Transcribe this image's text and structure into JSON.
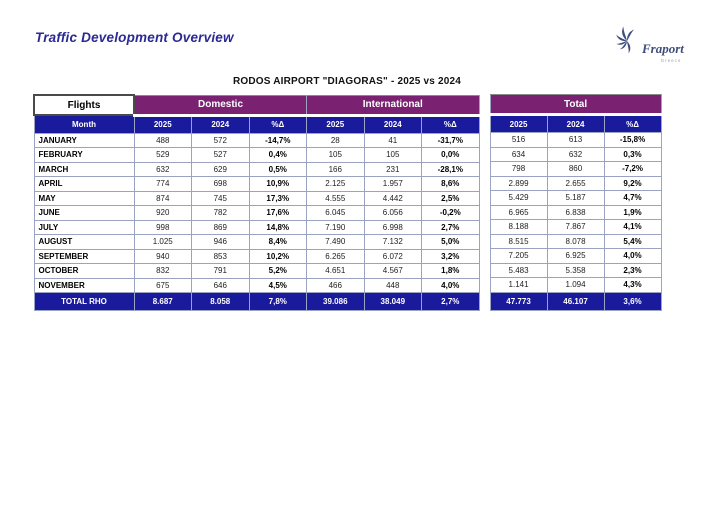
{
  "page": {
    "title": "Traffic Development Overview",
    "logo": {
      "brand": "Fraport",
      "sub": "Greece"
    }
  },
  "colors": {
    "header_purple": "#7B2172",
    "header_blue": "#1A1A9C",
    "title_navy": "#2B2A94",
    "logo_blue": "#3E4E7A"
  },
  "table": {
    "caption": "RODOS AIRPORT \"DIAGORAS\" - 2025 vs 2024",
    "corner_label": "Flights",
    "groups": {
      "domestic": "Domestic",
      "international": "International",
      "total": "Total"
    },
    "col_headers": {
      "month": "Month",
      "y2025": "2025",
      "y2024": "2024",
      "delta": "%Δ"
    },
    "rows": [
      {
        "month": "JANUARY",
        "d2025": "488",
        "d2024": "572",
        "d_pct": "-14,7%",
        "i2025": "28",
        "i2024": "41",
        "i_pct": "-31,7%",
        "t2025": "516",
        "t2024": "613",
        "t_pct": "-15,8%"
      },
      {
        "month": "FEBRUARY",
        "d2025": "529",
        "d2024": "527",
        "d_pct": "0,4%",
        "i2025": "105",
        "i2024": "105",
        "i_pct": "0,0%",
        "t2025": "634",
        "t2024": "632",
        "t_pct": "0,3%"
      },
      {
        "month": "MARCH",
        "d2025": "632",
        "d2024": "629",
        "d_pct": "0,5%",
        "i2025": "166",
        "i2024": "231",
        "i_pct": "-28,1%",
        "t2025": "798",
        "t2024": "860",
        "t_pct": "-7,2%"
      },
      {
        "month": "APRIL",
        "d2025": "774",
        "d2024": "698",
        "d_pct": "10,9%",
        "i2025": "2.125",
        "i2024": "1.957",
        "i_pct": "8,6%",
        "t2025": "2.899",
        "t2024": "2.655",
        "t_pct": "9,2%"
      },
      {
        "month": "MAY",
        "d2025": "874",
        "d2024": "745",
        "d_pct": "17,3%",
        "i2025": "4.555",
        "i2024": "4.442",
        "i_pct": "2,5%",
        "t2025": "5.429",
        "t2024": "5.187",
        "t_pct": "4,7%"
      },
      {
        "month": "JUNE",
        "d2025": "920",
        "d2024": "782",
        "d_pct": "17,6%",
        "i2025": "6.045",
        "i2024": "6.056",
        "i_pct": "-0,2%",
        "t2025": "6.965",
        "t2024": "6.838",
        "t_pct": "1,9%"
      },
      {
        "month": "JULY",
        "d2025": "998",
        "d2024": "869",
        "d_pct": "14,8%",
        "i2025": "7.190",
        "i2024": "6.998",
        "i_pct": "2,7%",
        "t2025": "8.188",
        "t2024": "7.867",
        "t_pct": "4,1%"
      },
      {
        "month": "AUGUST",
        "d2025": "1.025",
        "d2024": "946",
        "d_pct": "8,4%",
        "i2025": "7.490",
        "i2024": "7.132",
        "i_pct": "5,0%",
        "t2025": "8.515",
        "t2024": "8.078",
        "t_pct": "5,4%"
      },
      {
        "month": "SEPTEMBER",
        "d2025": "940",
        "d2024": "853",
        "d_pct": "10,2%",
        "i2025": "6.265",
        "i2024": "6.072",
        "i_pct": "3,2%",
        "t2025": "7.205",
        "t2024": "6.925",
        "t_pct": "4,0%"
      },
      {
        "month": "OCTOBER",
        "d2025": "832",
        "d2024": "791",
        "d_pct": "5,2%",
        "i2025": "4.651",
        "i2024": "4.567",
        "i_pct": "1,8%",
        "t2025": "5.483",
        "t2024": "5.358",
        "t_pct": "2,3%"
      },
      {
        "month": "NOVEMBER",
        "d2025": "675",
        "d2024": "646",
        "d_pct": "4,5%",
        "i2025": "466",
        "i2024": "448",
        "i_pct": "4,0%",
        "t2025": "1.141",
        "t2024": "1.094",
        "t_pct": "4,3%"
      }
    ],
    "total_row": {
      "label": "TOTAL RHO",
      "d2025": "8.687",
      "d2024": "8.058",
      "d_pct": "7,8%",
      "i2025": "39.086",
      "i2024": "38.049",
      "i_pct": "2,7%",
      "t2025": "47.773",
      "t2024": "46.107",
      "t_pct": "3,6%"
    }
  }
}
